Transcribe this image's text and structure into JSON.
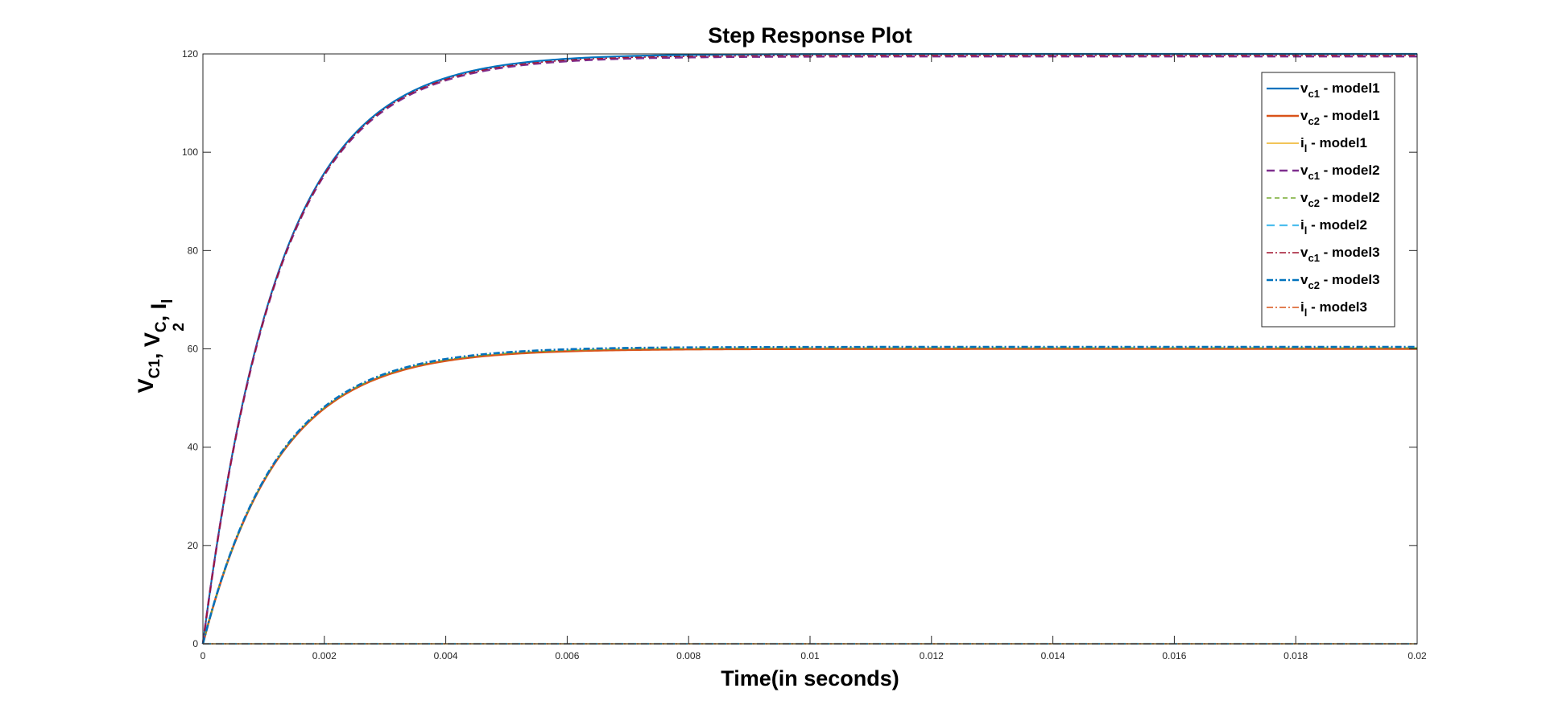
{
  "chart_data": {
    "type": "line",
    "title": "Step Response Plot",
    "xlabel": "Time(in seconds)",
    "ylabel": {
      "parts": [
        {
          "text": "V",
          "sub": "C1"
        },
        {
          "text": ", V",
          "sub": "C"
        },
        {
          "text": ", I",
          "sub": "l"
        }
      ],
      "extra_sub": "2"
    },
    "xlim": [
      0,
      0.02
    ],
    "ylim": [
      0,
      120
    ],
    "xticks": [
      0,
      0.002,
      0.004,
      0.006,
      0.008,
      0.01,
      0.012,
      0.014,
      0.016,
      0.018,
      0.02
    ],
    "xtick_labels": [
      "0",
      "0.002",
      "0.004",
      "0.006",
      "0.008",
      "0.01",
      "0.012",
      "0.014",
      "0.016",
      "0.018",
      "0.02"
    ],
    "yticks": [
      0,
      20,
      40,
      60,
      80,
      100,
      120
    ],
    "ytick_labels": [
      "0",
      "20",
      "40",
      "60",
      "80",
      "100",
      "120"
    ],
    "grid": false,
    "legend_position": "top-right",
    "series": [
      {
        "name": "v",
        "sub": "c1",
        "suffix": " - model1",
        "color": "#0072BD",
        "dash": "",
        "width": 2.2,
        "final": 120,
        "tau": 0.00125
      },
      {
        "name": "v",
        "sub": "c2",
        "suffix": " - model1",
        "color": "#D95319",
        "dash": "",
        "width": 2.6,
        "final": 60,
        "tau": 0.00125
      },
      {
        "name": "i",
        "sub": "l",
        "suffix": " - model1",
        "color": "#EDB120",
        "dash": "",
        "width": 1.5,
        "final": 0,
        "tau": 0.00125
      },
      {
        "name": "v",
        "sub": "c1",
        "suffix": " - model2",
        "color": "#7E2F8E",
        "dash": "10,6",
        "width": 2.6,
        "final": 119.5,
        "tau": 0.00125
      },
      {
        "name": "v",
        "sub": "c2",
        "suffix": " - model2",
        "color": "#77AC30",
        "dash": "6,4",
        "width": 1.5,
        "final": 60.2,
        "tau": 0.00125
      },
      {
        "name": "i",
        "sub": "l",
        "suffix": " - model2",
        "color": "#4DBEEE",
        "dash": "10,6",
        "width": 2.2,
        "final": 0,
        "tau": 0.00125
      },
      {
        "name": "v",
        "sub": "c1",
        "suffix": " - model3",
        "color": "#A2142F",
        "dash": "8,3,2,3",
        "width": 1.5,
        "final": 119.7,
        "tau": 0.00125
      },
      {
        "name": "v",
        "sub": "c2",
        "suffix": " - model3",
        "color": "#0072BD",
        "dash": "8,3,2,3",
        "width": 2.6,
        "final": 60.4,
        "tau": 0.00125
      },
      {
        "name": "i",
        "sub": "l",
        "suffix": " - model3",
        "color": "#D95319",
        "dash": "8,3,2,3",
        "width": 1.5,
        "final": 0,
        "tau": 0.00125
      }
    ]
  }
}
